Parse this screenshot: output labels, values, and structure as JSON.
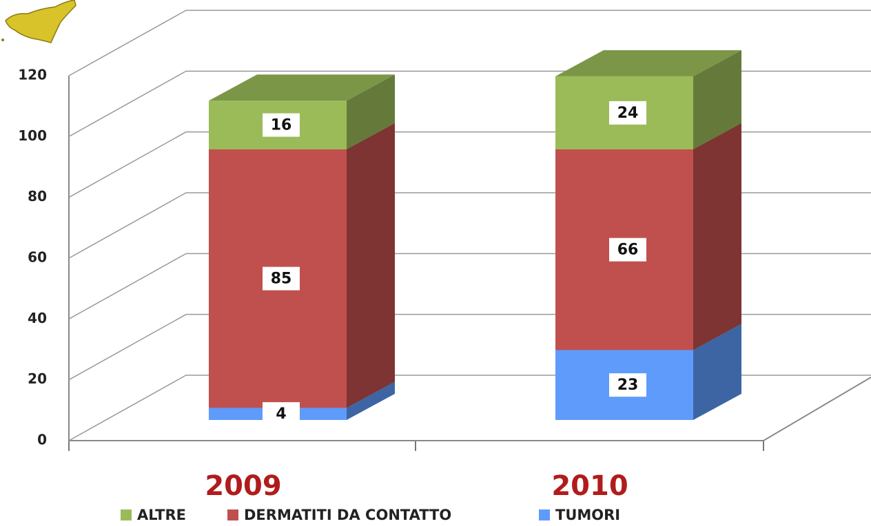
{
  "chart_data": {
    "type": "bar3d_stacked",
    "categories": [
      "2009",
      "2010"
    ],
    "series": [
      {
        "name": "TUMORI",
        "color": "#5f9bfa",
        "values": [
          4,
          23
        ]
      },
      {
        "name": "DERMATITI DA CONTATTO",
        "color": "#c0504d",
        "values": [
          85,
          66
        ]
      },
      {
        "name": "ALTRE",
        "color": "#9bbb59",
        "values": [
          16,
          24
        ]
      }
    ],
    "ylim": [
      0,
      120
    ],
    "yticks": [
      0,
      20,
      40,
      60,
      80,
      100,
      120
    ],
    "grid": true
  }
}
